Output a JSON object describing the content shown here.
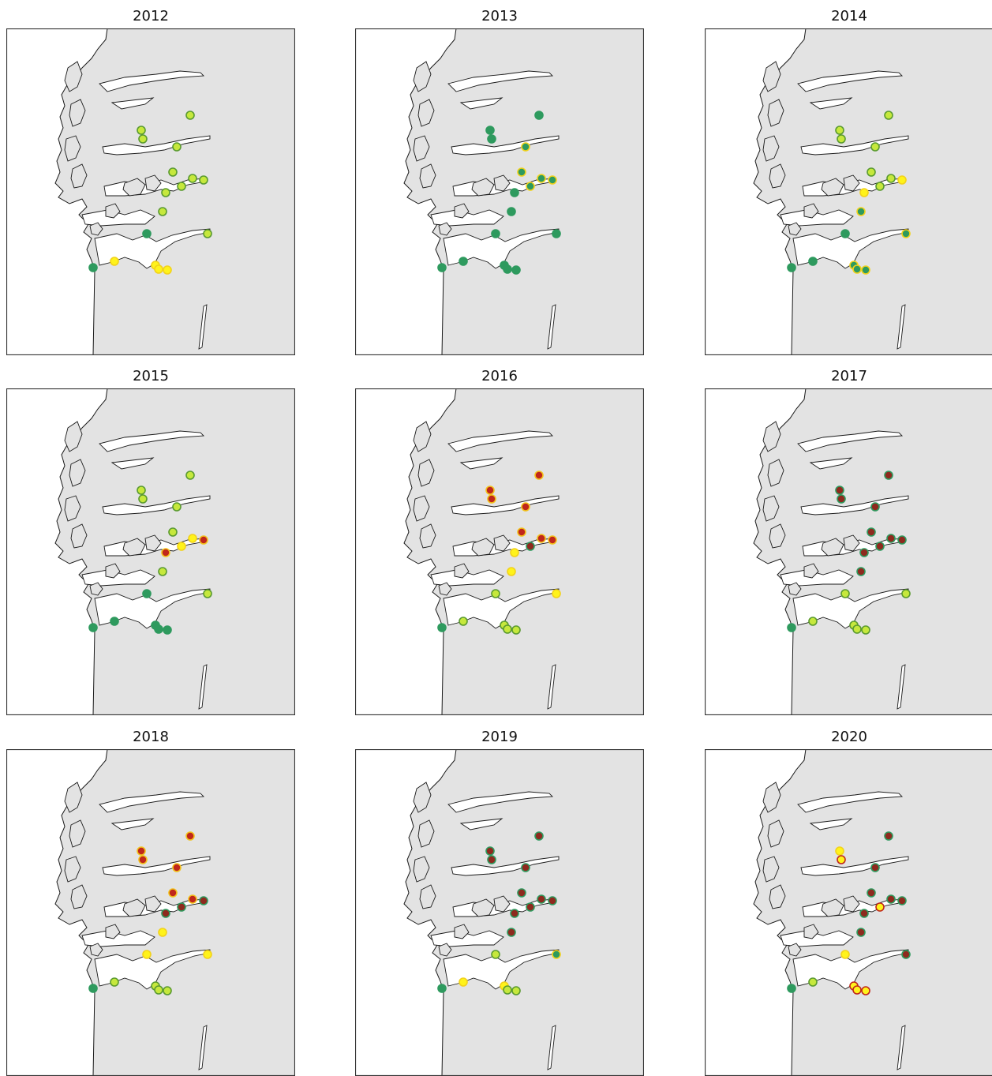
{
  "colors": {
    "sea": "#ffffff",
    "land": "#e3e3e3",
    "coast": "#1a1a1a",
    "frame": "#333333",
    "classes": {
      "dkgreen": {
        "fill": "#2e9a5e",
        "stroke": "#2e9a5e"
      },
      "ltgreen": {
        "fill": "#c6e83c",
        "stroke": "#5a9a30"
      },
      "yellow": {
        "fill": "#fff31a",
        "stroke": "#f2d21a"
      },
      "yg": {
        "fill": "#c6e83c",
        "stroke": "#f2d21a"
      },
      "gy": {
        "fill": "#2e9a5e",
        "stroke": "#f2d21a"
      },
      "red": {
        "fill": "#c0271b",
        "stroke": "#f2c21a"
      },
      "dkred": {
        "fill": "#8e2a1e",
        "stroke": "#2e9a5e"
      },
      "yr": {
        "fill": "#fff31a",
        "stroke": "#c0271b"
      }
    }
  },
  "panels": [
    {
      "year": "2012",
      "classes": [
        "ltgreen",
        "ltgreen",
        "ltgreen",
        "ltgreen",
        "ltgreen",
        "ltgreen",
        "ltgreen",
        "ltgreen",
        "ltgreen",
        "ltgreen",
        "dkgreen",
        "ltgreen",
        "dkgreen",
        "yellow",
        "yellow",
        "yellow",
        "yellow"
      ]
    },
    {
      "year": "2013",
      "classes": [
        "dkgreen",
        "dkgreen",
        "dkgreen",
        "gy",
        "gy",
        "gy",
        "gy",
        "gy",
        "dkgreen",
        "dkgreen",
        "dkgreen",
        "dkgreen",
        "dkgreen",
        "dkgreen",
        "dkgreen",
        "dkgreen",
        "dkgreen"
      ]
    },
    {
      "year": "2014",
      "classes": [
        "ltgreen",
        "ltgreen",
        "ltgreen",
        "ltgreen",
        "ltgreen",
        "ltgreen",
        "ltgreen",
        "yellow",
        "yellow",
        "gy",
        "dkgreen",
        "gy",
        "dkgreen",
        "dkgreen",
        "gy",
        "gy",
        "gy"
      ]
    },
    {
      "year": "2015",
      "classes": [
        "ltgreen",
        "ltgreen",
        "ltgreen",
        "ltgreen",
        "ltgreen",
        "yellow",
        "yellow",
        "red",
        "red",
        "ltgreen",
        "dkgreen",
        "ltgreen",
        "dkgreen",
        "dkgreen",
        "dkgreen",
        "dkgreen",
        "dkgreen"
      ]
    },
    {
      "year": "2016",
      "classes": [
        "red",
        "red",
        "red",
        "red",
        "red",
        "dkred",
        "red",
        "red",
        "yellow",
        "yellow",
        "ltgreen",
        "yellow",
        "dkgreen",
        "ltgreen",
        "ltgreen",
        "ltgreen",
        "ltgreen"
      ]
    },
    {
      "year": "2017",
      "classes": [
        "dkred",
        "dkred",
        "dkred",
        "dkred",
        "dkred",
        "dkred",
        "dkred",
        "dkred",
        "dkred",
        "dkred",
        "ltgreen",
        "ltgreen",
        "dkgreen",
        "ltgreen",
        "ltgreen",
        "ltgreen",
        "ltgreen"
      ]
    },
    {
      "year": "2018",
      "classes": [
        "red",
        "red",
        "red",
        "red",
        "red",
        "dkred",
        "red",
        "dkred",
        "dkred",
        "yellow",
        "yellow",
        "yellow",
        "dkgreen",
        "ltgreen",
        "ltgreen",
        "ltgreen",
        "ltgreen"
      ]
    },
    {
      "year": "2019",
      "classes": [
        "dkred",
        "dkred",
        "dkred",
        "dkred",
        "dkred",
        "dkred",
        "dkred",
        "dkred",
        "dkred",
        "dkred",
        "ltgreen",
        "gy",
        "dkgreen",
        "yellow",
        "yellow",
        "ltgreen",
        "ltgreen"
      ]
    },
    {
      "year": "2020",
      "classes": [
        "yellow",
        "yr",
        "dkred",
        "dkred",
        "dkred",
        "yr",
        "dkred",
        "dkred",
        "dkred",
        "dkred",
        "yellow",
        "dkred",
        "dkgreen",
        "ltgreen",
        "yr",
        "yr",
        "yr"
      ]
    }
  ]
}
